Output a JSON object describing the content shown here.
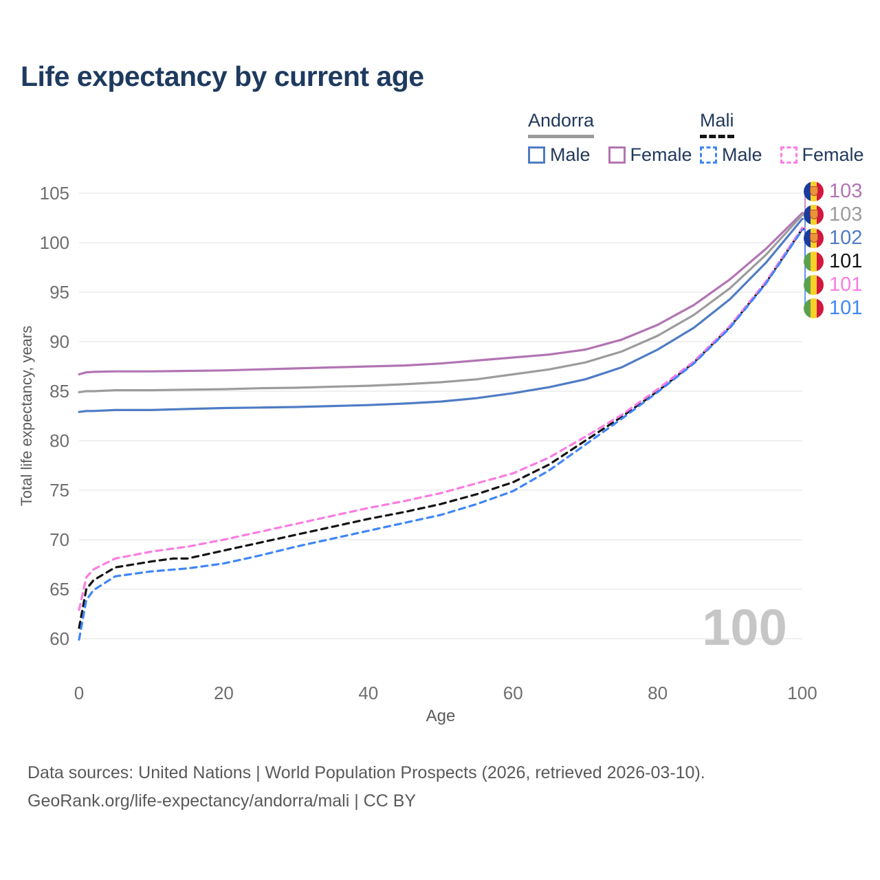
{
  "title": "Life expectancy by current age",
  "legend": {
    "groups": [
      {
        "name": "Andorra",
        "line_style": "solid",
        "line_color": "#9a9a9a",
        "items": [
          {
            "label": "Male",
            "color": "#4f7cc4"
          },
          {
            "label": "Female",
            "color": "#b274b2"
          }
        ]
      },
      {
        "name": "Mali",
        "line_style": "dashed",
        "line_color": "#141414",
        "items": [
          {
            "label": "Male",
            "color": "#3f86f7"
          },
          {
            "label": "Female",
            "color": "#fb7ce2"
          }
        ]
      }
    ]
  },
  "end_labels": [
    {
      "value": "103",
      "series": "Andorra Female",
      "flag": "andorra-flag",
      "color": "#b274b2"
    },
    {
      "value": "103",
      "series": "Andorra both sexes",
      "flag": "andorra-flag",
      "color": "#9c9c9c"
    },
    {
      "value": "102",
      "series": "Andorra Male",
      "flag": "andorra-flag",
      "color": "#4f7cc4"
    },
    {
      "value": "101",
      "series": "Mali both sexes",
      "flag": "mali-flag",
      "color": "#141414"
    },
    {
      "value": "101",
      "series": "Mali Female",
      "flag": "mali-flag",
      "color": "#fb7ce2"
    },
    {
      "value": "101",
      "series": "Mali Male",
      "flag": "mali-flag",
      "color": "#3f86f7"
    }
  ],
  "footer": {
    "line1": "Data sources: United Nations | World Population Prospects (2026, retrieved 2026-03-10).",
    "line2": "GeoRank.org/life-expectancy/andorra/mali | CC BY"
  },
  "chart_data": {
    "type": "line",
    "title": "Life expectancy by current age",
    "xlabel": "Age",
    "ylabel": "Total life expectancy, years",
    "xlim": [
      0,
      100
    ],
    "ylim": [
      60,
      105
    ],
    "x_ticks": [
      0,
      20,
      40,
      60,
      80,
      100
    ],
    "y_ticks": [
      60,
      65,
      70,
      75,
      80,
      85,
      90,
      95,
      100,
      105
    ],
    "grid": "horizontal",
    "legend_position": "top-right",
    "watermark": "100",
    "series": [
      {
        "name": "Andorra Female",
        "color": "#b274b2",
        "dash": "solid",
        "end_value": 103,
        "points": [
          [
            0,
            86.7
          ],
          [
            1,
            86.9
          ],
          [
            2,
            86.95
          ],
          [
            5,
            87.0
          ],
          [
            10,
            87.0
          ],
          [
            15,
            87.05
          ],
          [
            20,
            87.1
          ],
          [
            25,
            87.2
          ],
          [
            30,
            87.3
          ],
          [
            35,
            87.4
          ],
          [
            40,
            87.5
          ],
          [
            45,
            87.6
          ],
          [
            50,
            87.8
          ],
          [
            55,
            88.1
          ],
          [
            60,
            88.4
          ],
          [
            65,
            88.7
          ],
          [
            70,
            89.2
          ],
          [
            75,
            90.2
          ],
          [
            80,
            91.7
          ],
          [
            85,
            93.7
          ],
          [
            90,
            96.3
          ],
          [
            95,
            99.4
          ],
          [
            100,
            103.0
          ]
        ]
      },
      {
        "name": "Andorra both sexes",
        "color": "#9c9c9c",
        "dash": "solid",
        "end_value": 103,
        "points": [
          [
            0,
            84.9
          ],
          [
            1,
            85.0
          ],
          [
            2,
            85.0
          ],
          [
            5,
            85.1
          ],
          [
            10,
            85.1
          ],
          [
            15,
            85.15
          ],
          [
            20,
            85.2
          ],
          [
            25,
            85.3
          ],
          [
            30,
            85.35
          ],
          [
            35,
            85.45
          ],
          [
            40,
            85.55
          ],
          [
            45,
            85.7
          ],
          [
            50,
            85.9
          ],
          [
            55,
            86.2
          ],
          [
            60,
            86.7
          ],
          [
            65,
            87.2
          ],
          [
            70,
            87.9
          ],
          [
            75,
            89.0
          ],
          [
            80,
            90.6
          ],
          [
            85,
            92.7
          ],
          [
            90,
            95.4
          ],
          [
            95,
            98.8
          ],
          [
            100,
            102.8
          ]
        ]
      },
      {
        "name": "Andorra Male",
        "color": "#4f7cc4",
        "dash": "solid",
        "end_value": 102,
        "points": [
          [
            0,
            82.9
          ],
          [
            1,
            83.0
          ],
          [
            2,
            83.0
          ],
          [
            5,
            83.1
          ],
          [
            10,
            83.1
          ],
          [
            15,
            83.2
          ],
          [
            20,
            83.3
          ],
          [
            25,
            83.35
          ],
          [
            30,
            83.4
          ],
          [
            35,
            83.5
          ],
          [
            40,
            83.6
          ],
          [
            45,
            83.75
          ],
          [
            50,
            83.95
          ],
          [
            55,
            84.3
          ],
          [
            60,
            84.8
          ],
          [
            65,
            85.4
          ],
          [
            70,
            86.2
          ],
          [
            75,
            87.4
          ],
          [
            80,
            89.2
          ],
          [
            85,
            91.4
          ],
          [
            90,
            94.3
          ],
          [
            95,
            98.0
          ],
          [
            100,
            102.4
          ]
        ]
      },
      {
        "name": "Mali both sexes",
        "color": "#141414",
        "dash": "dashed",
        "end_value": 101,
        "points": [
          [
            0,
            61.1
          ],
          [
            1,
            65.0
          ],
          [
            2,
            65.9
          ],
          [
            5,
            67.2
          ],
          [
            10,
            67.8
          ],
          [
            13,
            68.1
          ],
          [
            15,
            68.1
          ],
          [
            20,
            68.9
          ],
          [
            25,
            69.7
          ],
          [
            30,
            70.5
          ],
          [
            35,
            71.3
          ],
          [
            40,
            72.1
          ],
          [
            45,
            72.8
          ],
          [
            50,
            73.6
          ],
          [
            55,
            74.6
          ],
          [
            60,
            75.8
          ],
          [
            65,
            77.6
          ],
          [
            70,
            80.0
          ],
          [
            75,
            82.4
          ],
          [
            80,
            85.0
          ],
          [
            85,
            87.9
          ],
          [
            90,
            91.5
          ],
          [
            95,
            96.0
          ],
          [
            100,
            101.4
          ]
        ]
      },
      {
        "name": "Mali Female",
        "color": "#fb7ce2",
        "dash": "dashed",
        "end_value": 101,
        "points": [
          [
            0,
            62.9
          ],
          [
            1,
            66.2
          ],
          [
            2,
            67.0
          ],
          [
            5,
            68.1
          ],
          [
            10,
            68.8
          ],
          [
            15,
            69.3
          ],
          [
            20,
            70.0
          ],
          [
            25,
            70.8
          ],
          [
            30,
            71.6
          ],
          [
            35,
            72.4
          ],
          [
            40,
            73.2
          ],
          [
            45,
            73.9
          ],
          [
            50,
            74.7
          ],
          [
            55,
            75.7
          ],
          [
            60,
            76.7
          ],
          [
            65,
            78.3
          ],
          [
            70,
            80.4
          ],
          [
            75,
            82.6
          ],
          [
            80,
            85.2
          ],
          [
            85,
            88.0
          ],
          [
            90,
            91.6
          ],
          [
            95,
            96.1
          ],
          [
            100,
            101.5
          ]
        ]
      },
      {
        "name": "Mali Male",
        "color": "#3f86f7",
        "dash": "dashed",
        "end_value": 101,
        "points": [
          [
            0,
            59.9
          ],
          [
            1,
            63.9
          ],
          [
            2,
            64.9
          ],
          [
            5,
            66.3
          ],
          [
            10,
            66.8
          ],
          [
            15,
            67.1
          ],
          [
            20,
            67.6
          ],
          [
            25,
            68.4
          ],
          [
            30,
            69.3
          ],
          [
            35,
            70.1
          ],
          [
            40,
            70.9
          ],
          [
            45,
            71.7
          ],
          [
            50,
            72.5
          ],
          [
            55,
            73.6
          ],
          [
            60,
            74.9
          ],
          [
            65,
            77.0
          ],
          [
            70,
            79.6
          ],
          [
            75,
            82.2
          ],
          [
            80,
            84.9
          ],
          [
            85,
            87.8
          ],
          [
            90,
            91.4
          ],
          [
            95,
            95.9
          ],
          [
            100,
            101.3
          ]
        ]
      }
    ]
  }
}
